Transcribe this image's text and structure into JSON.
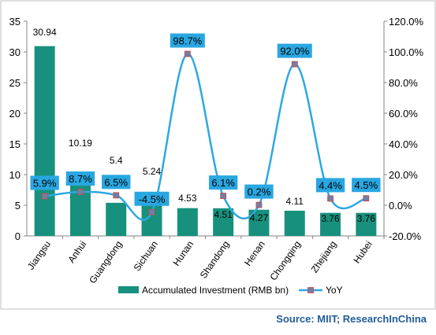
{
  "chart_data": {
    "type": "bar",
    "categories": [
      "Jiangsu",
      "Anhui",
      "Guangdong",
      "Sichuan",
      "Hunan",
      "Shandong",
      "Henan",
      "Chongqing",
      "Zhejiang",
      "Hubei"
    ],
    "series": [
      {
        "name": "Accumulated Investment (RMB bn)",
        "type": "bar",
        "axis": "left",
        "values": [
          30.94,
          10.19,
          5.4,
          5.24,
          4.53,
          4.51,
          4.27,
          4.11,
          3.76,
          3.76
        ],
        "labels": [
          "30.94",
          "10.19",
          "5.4",
          "5.24",
          "4.53",
          "4.51",
          "4.27",
          "4.11",
          "3.76",
          "3.76"
        ]
      },
      {
        "name": "YoY",
        "type": "line",
        "axis": "right",
        "values": [
          5.9,
          8.7,
          6.5,
          -4.5,
          98.7,
          6.1,
          0.2,
          92.0,
          4.4,
          4.5
        ],
        "labels": [
          "5.9%",
          "8.7%",
          "6.5%",
          "-4.5%",
          "98.7%",
          "6.1%",
          "0.2%",
          "92.0%",
          "4.4%",
          "4.5%"
        ]
      }
    ],
    "y_left": {
      "min": 0,
      "max": 35,
      "ticks": [
        "0",
        "5",
        "10",
        "15",
        "20",
        "25",
        "30",
        "35"
      ],
      "tick_values": [
        0,
        5,
        10,
        15,
        20,
        25,
        30,
        35
      ]
    },
    "y_right": {
      "min": -20,
      "max": 120,
      "ticks": [
        "-20.0%",
        "0.0%",
        "20.0%",
        "40.0%",
        "60.0%",
        "80.0%",
        "100.0%",
        "120.0%"
      ],
      "tick_values": [
        -20,
        0,
        20,
        40,
        60,
        80,
        100,
        120
      ]
    },
    "grid": false,
    "legend_position": "bottom",
    "colors": {
      "bar": "#17917d",
      "line": "#2ea8e0",
      "marker": "#6f7fa8",
      "label_box": "#29a7e1",
      "source": "#1f5c99"
    }
  },
  "source": "Source: MIIT; ResearchInChina"
}
